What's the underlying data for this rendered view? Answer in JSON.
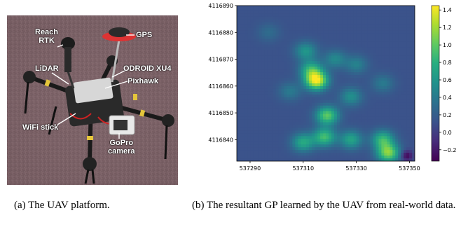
{
  "figure_a": {
    "labels": {
      "reach_rtk": "Reach\nRTK",
      "gps": "GPS",
      "lidar": "LiDAR",
      "odroid": "ODROID XU4",
      "pixhawk": "Pixhawk",
      "wifi": "WiFi stick",
      "gopro": "GoPro\ncamera"
    },
    "caption": "(a) The UAV platform."
  },
  "figure_b": {
    "caption": "(b) The resultant GP learned by the UAV from real-world data.",
    "chart_data": {
      "type": "heatmap",
      "x_ticks": [
        "537290",
        "537310",
        "537330",
        "537350"
      ],
      "y_ticks": [
        "4116890",
        "4116880",
        "4116870",
        "4116860",
        "4116850",
        "4116840"
      ],
      "colorbar_ticks": [
        "1.4",
        "1.2",
        "1.0",
        "0.8",
        "0.6",
        "0.4",
        "0.2",
        "0.0",
        "−0.2"
      ],
      "colorbar_range": [
        -0.33,
        1.45
      ],
      "xlim": [
        537285,
        537352
      ],
      "ylim": [
        4116832,
        4116890
      ],
      "blobs": [
        {
          "x": 537315,
          "y": 4116862,
          "v": 1.4
        },
        {
          "x": 537313,
          "y": 4116866,
          "v": 0.8
        },
        {
          "x": 537319,
          "y": 4116849,
          "v": 1.0
        },
        {
          "x": 537311,
          "y": 4116873,
          "v": 0.6
        },
        {
          "x": 537322,
          "y": 4116870,
          "v": 0.5
        },
        {
          "x": 537330,
          "y": 4116868,
          "v": 0.45
        },
        {
          "x": 537328,
          "y": 4116856,
          "v": 0.55
        },
        {
          "x": 537305,
          "y": 4116858,
          "v": 0.4
        },
        {
          "x": 537318,
          "y": 4116841,
          "v": 0.9
        },
        {
          "x": 537310,
          "y": 4116839,
          "v": 0.75
        },
        {
          "x": 537328,
          "y": 4116840,
          "v": 0.7
        },
        {
          "x": 537340,
          "y": 4116840,
          "v": 0.85
        },
        {
          "x": 537342,
          "y": 4116835,
          "v": 1.1
        },
        {
          "x": 537340,
          "y": 4116861,
          "v": 0.4
        },
        {
          "x": 537297,
          "y": 4116880,
          "v": 0.3
        }
      ],
      "min_point": {
        "x": 537349,
        "y": 4116834,
        "v": -0.33
      }
    }
  }
}
